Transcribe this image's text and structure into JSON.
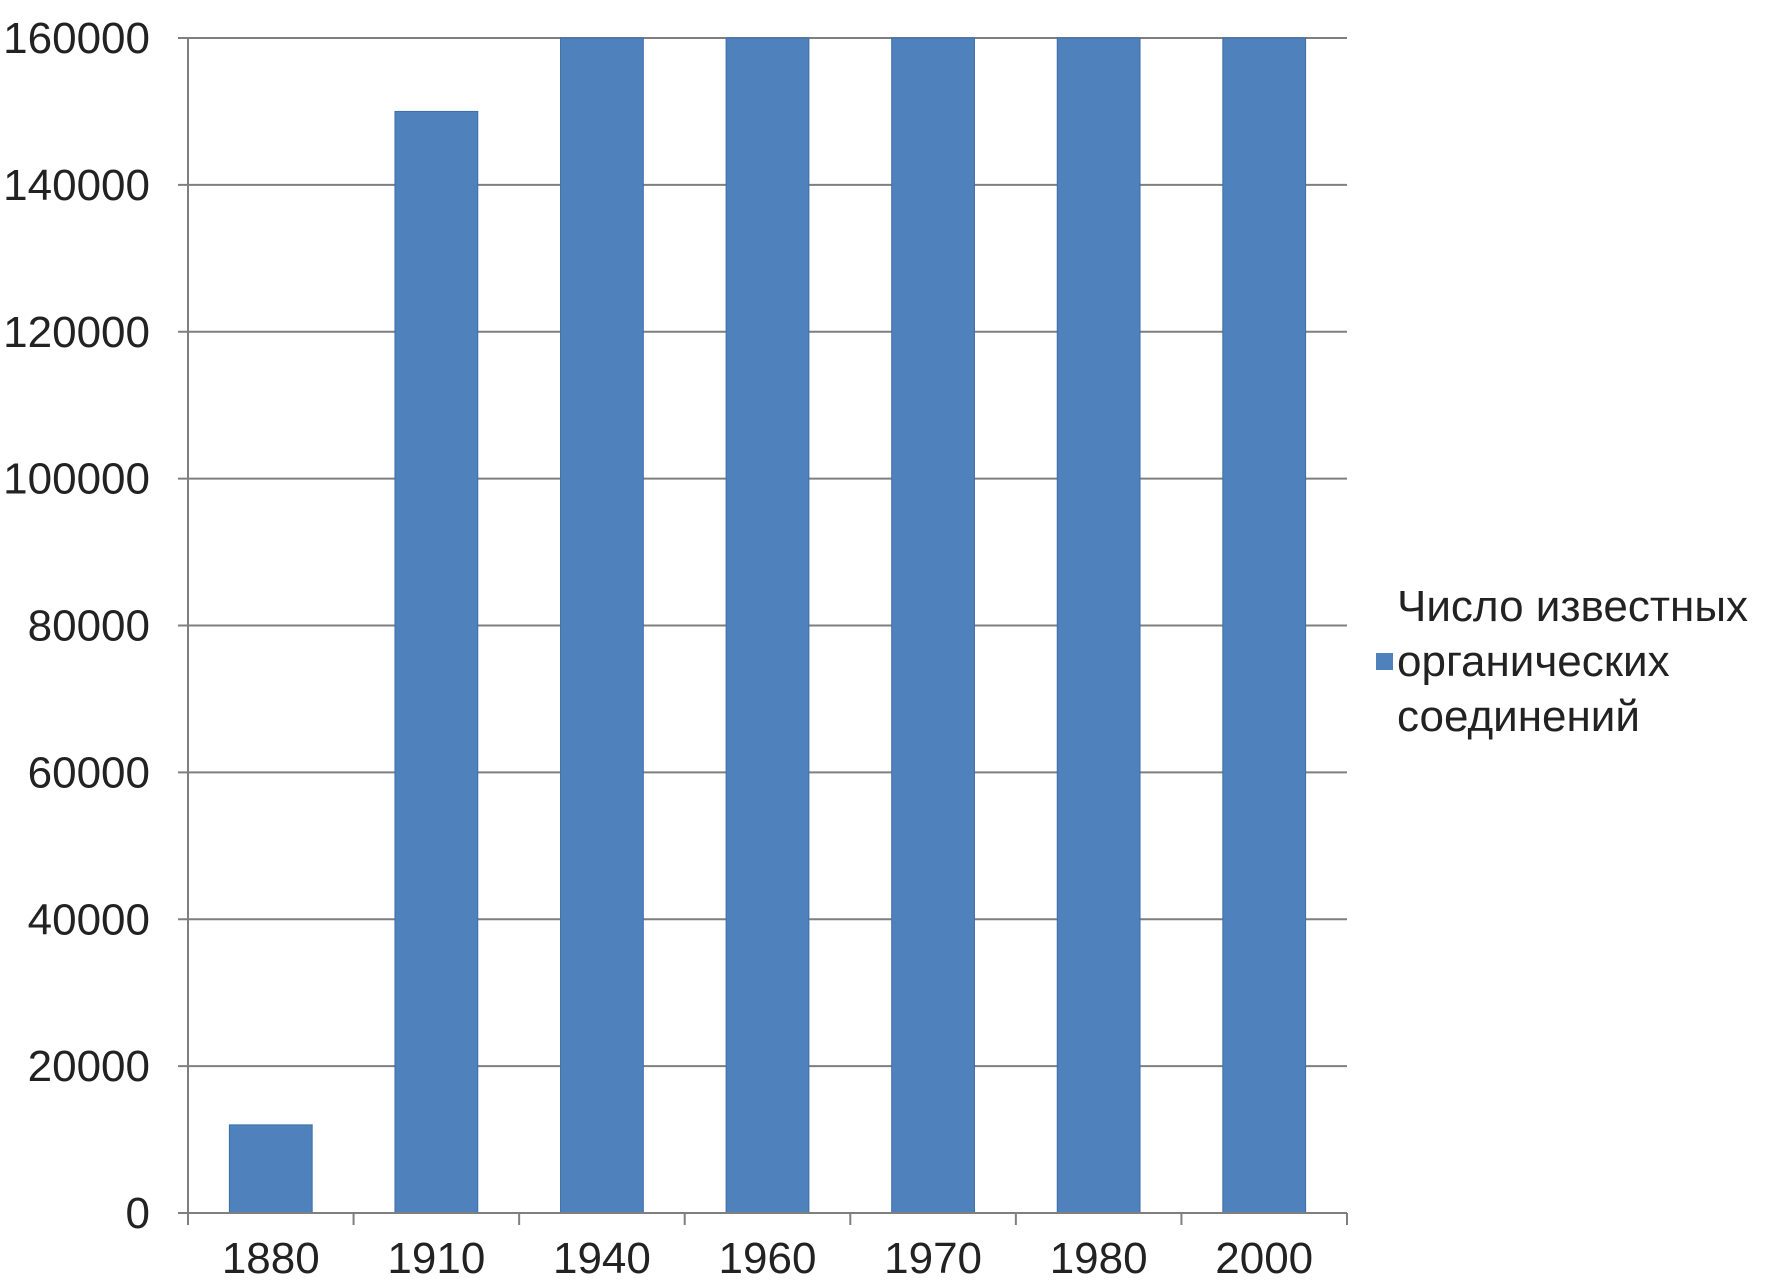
{
  "chart_data": {
    "type": "bar",
    "categories": [
      "1880",
      "1910",
      "1940",
      "1960",
      "1970",
      "1980",
      "2000"
    ],
    "series": [
      {
        "name": "Число известных органических соединений",
        "values": [
          12000,
          150000,
          160000,
          160000,
          160000,
          160000,
          160000
        ],
        "color": "#4F81BD"
      }
    ],
    "ylim": [
      0,
      160000
    ],
    "yticks": [
      "0",
      "20000",
      "40000",
      "60000",
      "80000",
      "100000",
      "120000",
      "140000",
      "160000"
    ],
    "grid": true,
    "legend_position": "right",
    "legend_lines": [
      "Число известных",
      "органических",
      "соединений"
    ]
  }
}
